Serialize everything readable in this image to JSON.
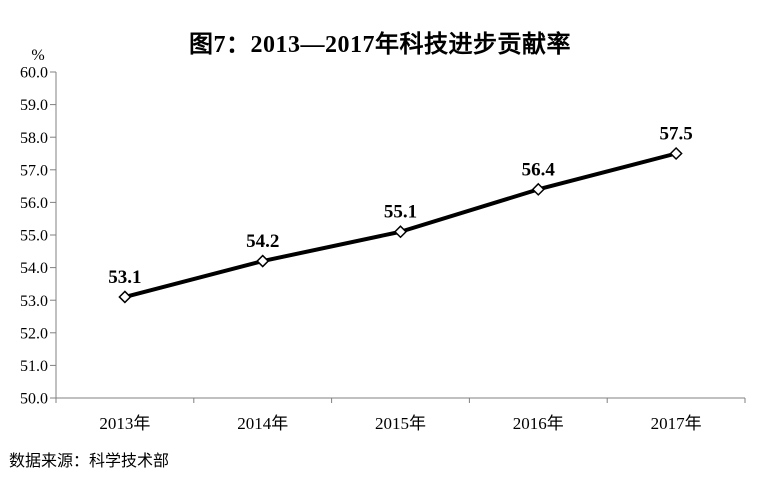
{
  "title": "图7：2013—2017年科技进步贡献率",
  "source_note": "数据来源：科学技术部",
  "colors": {
    "line": "#000000",
    "axis": "#808080",
    "text": "#000000",
    "marker_fill": "#ffffff",
    "background": "#ffffff"
  },
  "chart_data": {
    "type": "line",
    "title": "图7：2013—2017年科技进步贡献率",
    "categories": [
      "2013年",
      "2014年",
      "2015年",
      "2016年",
      "2017年"
    ],
    "series": [
      {
        "name": "科技进步贡献率",
        "values": [
          53.1,
          54.2,
          55.1,
          56.4,
          57.5
        ]
      }
    ],
    "data_labels": [
      "53.1",
      "54.2",
      "55.1",
      "56.4",
      "57.5"
    ],
    "ylabel": "%",
    "xlabel": "",
    "ylim": [
      50.0,
      60.0
    ],
    "ytick_step": 1.0,
    "ytick_labels": [
      "60.0",
      "59.0",
      "58.0",
      "57.0",
      "56.0",
      "55.0",
      "54.0",
      "53.0",
      "52.0",
      "51.0",
      "50.0"
    ],
    "grid": false,
    "legend_position": "none",
    "marker": "open-diamond"
  }
}
